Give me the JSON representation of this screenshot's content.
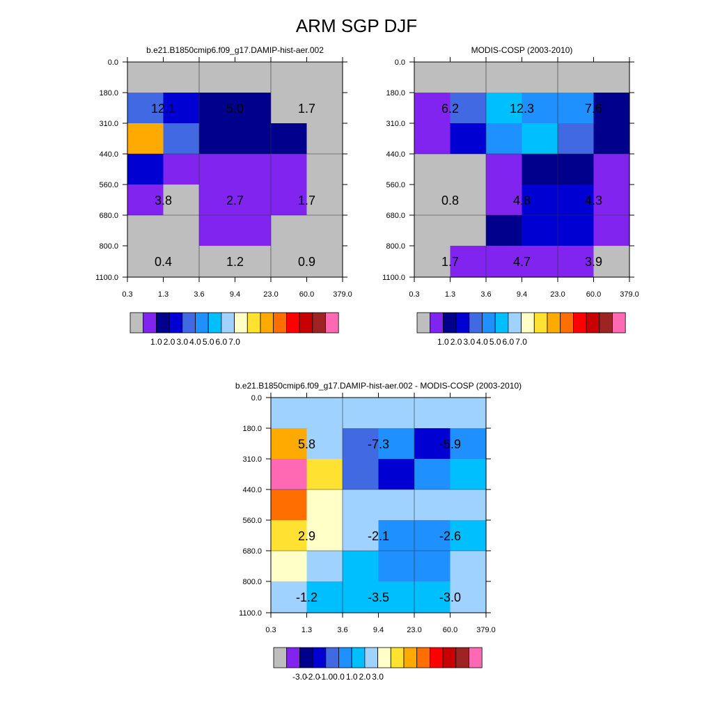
{
  "title": "ARM SGP DJF",
  "palette": {
    "gray": "#bebebe",
    "violet": "#8224f0",
    "navy": "#00008c",
    "blue": "#0000d2",
    "royal": "#4169e1",
    "dodger": "#1e90ff",
    "deepsky": "#00bfff",
    "lightsky": "#a0d2ff",
    "cream": "#ffffc8",
    "gold": "#ffe132",
    "amber": "#ffaa00",
    "orange": "#ff6e00",
    "red": "#ff0000",
    "crimson": "#c80000",
    "brick": "#a02323",
    "pink": "#ff69b4"
  },
  "chart_data": [
    {
      "type": "heatmap",
      "title": "b.e21.B1850cmip6.f09_g17.DAMIP-hist-aer.002",
      "x_ticks": [
        "0.3",
        "1.3",
        "3.6",
        "9.4",
        "23.0",
        "60.0",
        "379.0"
      ],
      "y_ticks": [
        "0.0",
        "180.0",
        "310.0",
        "440.0",
        "560.0",
        "680.0",
        "800.0",
        "1100.0"
      ],
      "cells": [
        [
          "gray",
          "gray",
          "gray",
          "gray",
          "gray",
          "gray"
        ],
        [
          "royal",
          "blue",
          "navy",
          "navy",
          "gray",
          "gray"
        ],
        [
          "amber",
          "royal",
          "navy",
          "navy",
          "navy",
          "gray"
        ],
        [
          "blue",
          "violet",
          "violet",
          "violet",
          "violet",
          "gray"
        ],
        [
          "violet",
          "gray",
          "violet",
          "violet",
          "violet",
          "gray"
        ],
        [
          "gray",
          "gray",
          "violet",
          "violet",
          "gray",
          "gray"
        ],
        [
          "gray",
          "gray",
          "gray",
          "gray",
          "gray",
          "gray"
        ]
      ],
      "values": [
        {
          "text": "12.1",
          "col": 0.5,
          "row": 1
        },
        {
          "text": "5.0",
          "col": 2.5,
          "row": 1
        },
        {
          "text": "1.7",
          "col": 4.5,
          "row": 1
        },
        {
          "text": "3.8",
          "col": 0.5,
          "row": 4
        },
        {
          "text": "2.7",
          "col": 2.5,
          "row": 4
        },
        {
          "text": "1.7",
          "col": 4.5,
          "row": 4
        },
        {
          "text": "0.4",
          "col": 0.5,
          "row": 6
        },
        {
          "text": "1.2",
          "col": 2.5,
          "row": 6
        },
        {
          "text": "0.9",
          "col": 4.5,
          "row": 6
        }
      ],
      "colorbar": {
        "colors": [
          "gray",
          "violet",
          "navy",
          "blue",
          "royal",
          "dodger",
          "deepsky",
          "lightsky",
          "cream",
          "gold",
          "amber",
          "orange",
          "red",
          "crimson",
          "brick",
          "pink"
        ],
        "labels": [
          "1.0",
          "2.0",
          "3.0",
          "4.0",
          "5.0",
          "6.0",
          "7.0"
        ]
      }
    },
    {
      "type": "heatmap",
      "title": "MODIS-COSP (2003-2010)",
      "x_ticks": [
        "0.3",
        "1.3",
        "3.6",
        "9.4",
        "23.0",
        "60.0",
        "379.0"
      ],
      "y_ticks": [
        "0.0",
        "180.0",
        "310.0",
        "440.0",
        "560.0",
        "680.0",
        "800.0",
        "1100.0"
      ],
      "cells": [
        [
          "gray",
          "gray",
          "gray",
          "gray",
          "gray",
          "gray"
        ],
        [
          "violet",
          "royal",
          "deepsky",
          "dodger",
          "dodger",
          "navy"
        ],
        [
          "violet",
          "blue",
          "dodger",
          "deepsky",
          "royal",
          "navy"
        ],
        [
          "gray",
          "gray",
          "violet",
          "navy",
          "navy",
          "violet"
        ],
        [
          "gray",
          "gray",
          "violet",
          "blue",
          "blue",
          "violet"
        ],
        [
          "gray",
          "gray",
          "navy",
          "blue",
          "blue",
          "violet"
        ],
        [
          "gray",
          "violet",
          "violet",
          "violet",
          "violet",
          "gray"
        ]
      ],
      "values": [
        {
          "text": "6.2",
          "col": 0.5,
          "row": 1
        },
        {
          "text": "12.3",
          "col": 2.5,
          "row": 1
        },
        {
          "text": "7.6",
          "col": 4.5,
          "row": 1
        },
        {
          "text": "0.8",
          "col": 0.5,
          "row": 4
        },
        {
          "text": "4.8",
          "col": 2.5,
          "row": 4
        },
        {
          "text": "4.3",
          "col": 4.5,
          "row": 4
        },
        {
          "text": "1.7",
          "col": 0.5,
          "row": 6
        },
        {
          "text": "4.7",
          "col": 2.5,
          "row": 6
        },
        {
          "text": "3.9",
          "col": 4.5,
          "row": 6
        }
      ],
      "colorbar": {
        "colors": [
          "gray",
          "violet",
          "navy",
          "blue",
          "royal",
          "dodger",
          "deepsky",
          "lightsky",
          "cream",
          "gold",
          "amber",
          "orange",
          "red",
          "crimson",
          "brick",
          "pink"
        ],
        "labels": [
          "1.0",
          "2.0",
          "3.0",
          "4.0",
          "5.0",
          "6.0",
          "7.0"
        ]
      }
    },
    {
      "type": "heatmap",
      "title": "b.e21.B1850cmip6.f09_g17.DAMIP-hist-aer.002 - MODIS-COSP (2003-2010)",
      "x_ticks": [
        "0.3",
        "1.3",
        "3.6",
        "9.4",
        "23.0",
        "60.0",
        "379.0"
      ],
      "y_ticks": [
        "0.0",
        "180.0",
        "310.0",
        "440.0",
        "560.0",
        "680.0",
        "800.0",
        "1100.0"
      ],
      "cells": [
        [
          "lightsky",
          "lightsky",
          "lightsky",
          "lightsky",
          "lightsky",
          "lightsky"
        ],
        [
          "amber",
          "lightsky",
          "royal",
          "dodger",
          "blue",
          "dodger"
        ],
        [
          "pink",
          "gold",
          "royal",
          "blue",
          "dodger",
          "deepsky"
        ],
        [
          "orange",
          "cream",
          "lightsky",
          "lightsky",
          "lightsky",
          "lightsky"
        ],
        [
          "gold",
          "cream",
          "lightsky",
          "dodger",
          "dodger",
          "deepsky"
        ],
        [
          "cream",
          "lightsky",
          "deepsky",
          "dodger",
          "dodger",
          "lightsky"
        ],
        [
          "lightsky",
          "deepsky",
          "deepsky",
          "deepsky",
          "deepsky",
          "lightsky"
        ]
      ],
      "values": [
        {
          "text": "5.8",
          "col": 0.5,
          "row": 1
        },
        {
          "text": "-7.3",
          "col": 2.5,
          "row": 1
        },
        {
          "text": "-5.9",
          "col": 4.5,
          "row": 1
        },
        {
          "text": "2.9",
          "col": 0.5,
          "row": 4
        },
        {
          "text": "-2.1",
          "col": 2.5,
          "row": 4
        },
        {
          "text": "-2.6",
          "col": 4.5,
          "row": 4
        },
        {
          "text": "-1.2",
          "col": 0.5,
          "row": 6
        },
        {
          "text": "-3.5",
          "col": 2.5,
          "row": 6
        },
        {
          "text": "-3.0",
          "col": 4.5,
          "row": 6
        }
      ],
      "colorbar": {
        "colors": [
          "gray",
          "violet",
          "navy",
          "blue",
          "royal",
          "dodger",
          "deepsky",
          "lightsky",
          "cream",
          "gold",
          "amber",
          "orange",
          "red",
          "crimson",
          "brick",
          "pink"
        ],
        "labels": [
          "-3.0",
          "-2.0",
          "-1.0",
          "0.0",
          "1.0",
          "2.0",
          "3.0"
        ]
      }
    }
  ]
}
